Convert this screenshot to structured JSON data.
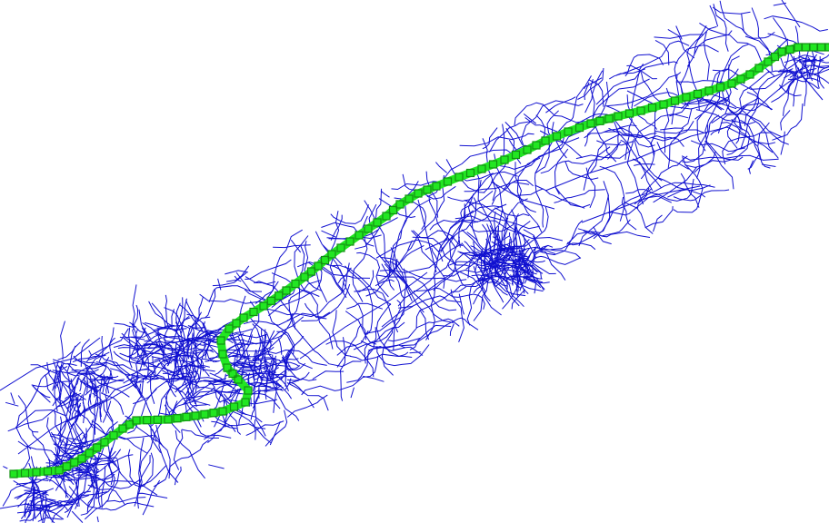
{
  "map": {
    "background_color": "#ffffff",
    "road_network": {
      "color": "#1010d0",
      "description": ""
    },
    "route": {
      "color": "#22e622",
      "marker_shape": "square"
    }
  }
}
